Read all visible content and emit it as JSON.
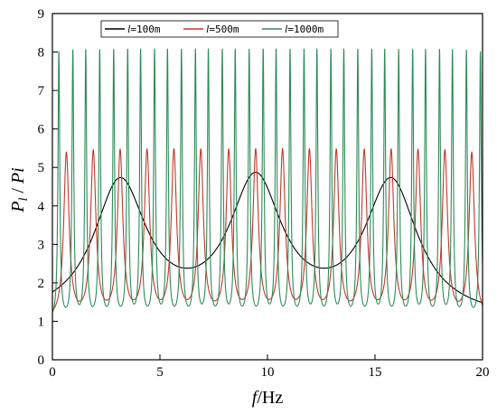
{
  "chart_data": {
    "type": "line",
    "xlabel": "f/Hz",
    "xlabel_parts": {
      "var": "f",
      "unit": "/Hz"
    },
    "ylabel": "Pl / Pi",
    "ylabel_parts": {
      "p": "P",
      "sub": "l",
      "sep": " / ",
      "den": "Pi"
    },
    "xlim": [
      0,
      20
    ],
    "ylim": [
      0,
      9
    ],
    "xticks": [
      0,
      5,
      10,
      15,
      20
    ],
    "yticks": [
      0,
      1,
      2,
      3,
      4,
      5,
      6,
      7,
      8,
      9
    ],
    "grid": false,
    "legend_placement": "top-left",
    "series": [
      {
        "name": "l=100m",
        "label_var": "l",
        "label_rest": "=100m",
        "color": "#000000",
        "baseline": 1.0,
        "peak": 4.5,
        "resonances": [
          3.15,
          9.45,
          15.75
        ],
        "width": 1.5,
        "spacing": 6.3
      },
      {
        "name": "l=500m",
        "label_var": "l",
        "label_rest": "=500m",
        "color": "#c0392b",
        "baseline": 1.0,
        "peak": 5.3,
        "resonances": [
          0.65,
          1.9,
          3.15,
          4.4,
          5.65,
          6.9,
          8.2,
          9.45,
          10.7,
          11.95,
          13.2,
          14.5,
          15.75,
          17.0,
          18.25,
          19.5
        ],
        "width": 0.15,
        "spacing": 1.26
      },
      {
        "name": "l=1000m",
        "label_var": "l",
        "label_rest": "=1000m",
        "color": "#2e8b57",
        "baseline": 1.0,
        "peak": 7.95,
        "resonances": [
          0.3,
          0.95,
          1.55,
          2.2,
          2.85,
          3.5,
          4.1,
          4.75,
          5.35,
          6.0,
          6.65,
          7.25,
          7.9,
          8.5,
          9.15,
          9.8,
          10.4,
          11.05,
          11.7,
          12.3,
          12.95,
          13.55,
          14.2,
          14.85,
          15.45,
          16.1,
          16.75,
          17.35,
          18.0,
          18.6,
          19.25,
          19.9
        ],
        "width": 0.05,
        "spacing": 0.63
      }
    ]
  }
}
